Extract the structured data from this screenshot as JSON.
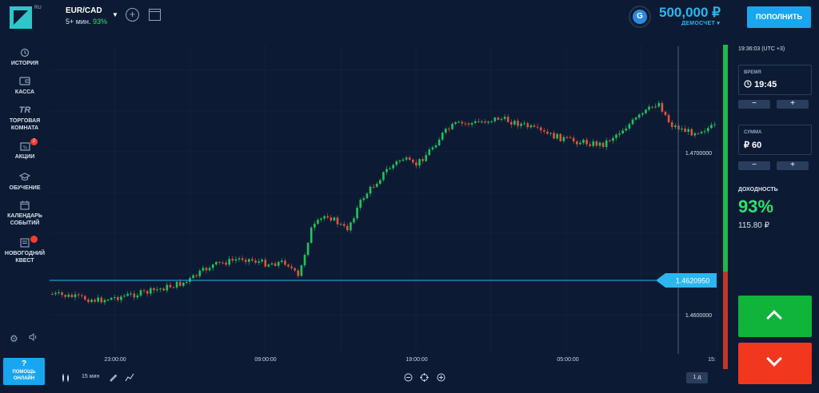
{
  "header": {
    "logo_suffix": "RU",
    "asset": {
      "name": "EUR/CAD",
      "duration": "5+ мин.",
      "payout": "93%"
    },
    "balance": "500,000 ₽",
    "account_type": "ДЕМОСЧЕТ ▾",
    "avatar_letter": "G",
    "deposit_label": "ПОПОЛНИТЬ"
  },
  "sidebar": {
    "items": [
      {
        "label": "ИСТОРИЯ",
        "icon": "history-icon"
      },
      {
        "label": "КАССА",
        "icon": "wallet-icon"
      },
      {
        "label": "ТОРГОВАЯ КОМНАТА",
        "icon": "trading-room-icon",
        "icon_text": "TR"
      },
      {
        "label": "АКЦИИ",
        "icon": "promo-icon",
        "badge": "2"
      },
      {
        "label": "ОБУЧЕНИЕ",
        "icon": "education-icon"
      },
      {
        "label": "КАЛЕНДАРЬ СОБЫТИЙ",
        "icon": "calendar-icon"
      },
      {
        "label": "НОВОГОДНИЙ КВЕСТ",
        "icon": "quest-icon"
      }
    ],
    "help_q": "?",
    "help_label": "ПОМОЩЬ ОНЛАЙН"
  },
  "chart": {
    "current_price": "1.4620950",
    "price_labels": [
      "1.4700000",
      "1.4600000"
    ],
    "time_labels": [
      "23:00:00",
      "09:00:00",
      "19:00:00",
      "05:00:00",
      "15:"
    ],
    "colors": {
      "up": "#20c55a",
      "down": "#e5533d",
      "line": "#2bb6f0"
    }
  },
  "bottom_toolbar": {
    "timeframe_label": "15 мин",
    "period_label": "1 д"
  },
  "right_panel": {
    "server_time": "19:36:03 (UTC +3)",
    "time_label": "ВРЕМЯ",
    "time_value": "19:45",
    "amount_label": "СУММА",
    "amount_value": "₽ 60",
    "minus": "−",
    "plus": "+",
    "yield_label": "ДОХОДНОСТЬ",
    "yield_pct": "93%",
    "yield_amount": "115.80 ₽"
  }
}
